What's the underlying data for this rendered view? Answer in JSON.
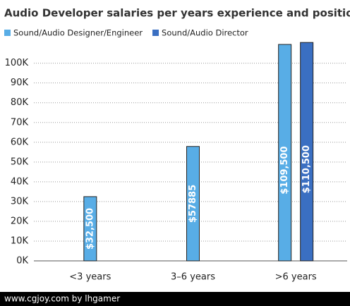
{
  "chart_data": {
    "type": "bar",
    "title": "Audio Developer salaries per years experience and position",
    "categories": [
      "<3 years",
      "3–6 years",
      ">6 years"
    ],
    "series": [
      {
        "name": "Sound/Audio Designer/Engineer",
        "color": "#58ade6",
        "values": [
          32500,
          57885,
          109500
        ],
        "value_labels": [
          "$32,500",
          "$57885",
          "$109,500"
        ]
      },
      {
        "name": "Sound/Audio Director",
        "color": "#3a6fc2",
        "values": [
          null,
          null,
          110500
        ],
        "value_labels": [
          null,
          null,
          "$110,500"
        ]
      }
    ],
    "ylim": [
      0,
      112000
    ],
    "yticks": [
      {
        "value": 0,
        "label": "0K"
      },
      {
        "value": 10000,
        "label": "10K"
      },
      {
        "value": 20000,
        "label": "20K"
      },
      {
        "value": 30000,
        "label": "30K"
      },
      {
        "value": 40000,
        "label": "40K"
      },
      {
        "value": 50000,
        "label": "50K"
      },
      {
        "value": 60000,
        "label": "60K"
      },
      {
        "value": 70000,
        "label": "70K"
      },
      {
        "value": 80000,
        "label": "80K"
      },
      {
        "value": 90000,
        "label": "90K"
      },
      {
        "value": 100000,
        "label": "100K"
      }
    ],
    "grid": true
  },
  "footer": "www.cgjoy.com by lhgamer"
}
